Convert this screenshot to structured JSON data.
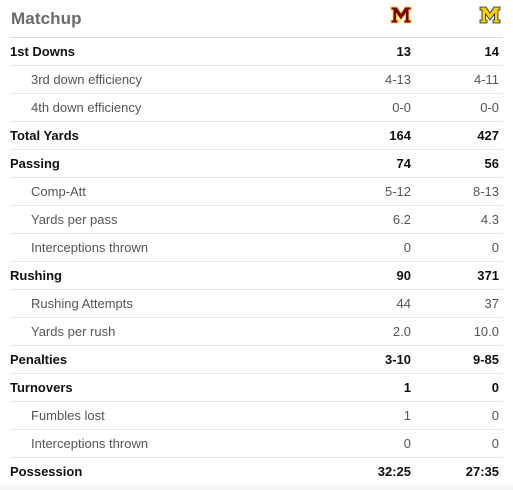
{
  "matchup": {
    "title": "Matchup",
    "team_a_logo": "minnesota-m-logo",
    "team_b_logo": "michigan-m-logo",
    "colors": {
      "team_a_maroon": "#7a0019",
      "team_a_gold": "#ffcc33",
      "team_b_maize": "#ffcb05",
      "team_b_blue": "#00274c"
    }
  },
  "rows": [
    {
      "label": "1st Downs",
      "a": "13",
      "b": "14",
      "type": "main"
    },
    {
      "label": "3rd down efficiency",
      "a": "4-13",
      "b": "4-11",
      "type": "sub"
    },
    {
      "label": "4th down efficiency",
      "a": "0-0",
      "b": "0-0",
      "type": "sub"
    },
    {
      "label": "Total Yards",
      "a": "164",
      "b": "427",
      "type": "main"
    },
    {
      "label": "Passing",
      "a": "74",
      "b": "56",
      "type": "main"
    },
    {
      "label": "Comp-Att",
      "a": "5-12",
      "b": "8-13",
      "type": "sub"
    },
    {
      "label": "Yards per pass",
      "a": "6.2",
      "b": "4.3",
      "type": "sub"
    },
    {
      "label": "Interceptions thrown",
      "a": "0",
      "b": "0",
      "type": "sub"
    },
    {
      "label": "Rushing",
      "a": "90",
      "b": "371",
      "type": "main"
    },
    {
      "label": "Rushing Attempts",
      "a": "44",
      "b": "37",
      "type": "sub"
    },
    {
      "label": "Yards per rush",
      "a": "2.0",
      "b": "10.0",
      "type": "sub"
    },
    {
      "label": "Penalties",
      "a": "3-10",
      "b": "9-85",
      "type": "main"
    },
    {
      "label": "Turnovers",
      "a": "1",
      "b": "0",
      "type": "main"
    },
    {
      "label": "Fumbles lost",
      "a": "1",
      "b": "0",
      "type": "sub"
    },
    {
      "label": "Interceptions thrown",
      "a": "0",
      "b": "0",
      "type": "sub"
    },
    {
      "label": "Possession",
      "a": "32:25",
      "b": "27:35",
      "type": "main"
    }
  ]
}
